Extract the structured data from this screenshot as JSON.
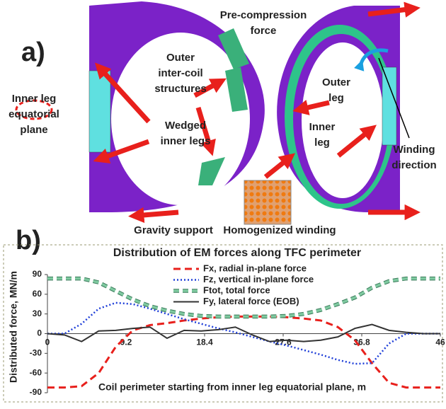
{
  "panel_a": {
    "label": "a)",
    "annotations": [
      {
        "lines": [
          "Pre-compression",
          "force"
        ]
      },
      {
        "lines": [
          "Outer",
          "inter-coil",
          "structures"
        ]
      },
      {
        "lines": [
          "Inner leg",
          "equatorial",
          "plane"
        ]
      },
      {
        "lines": [
          "Wedged",
          "inner legs"
        ]
      },
      {
        "lines": [
          "Outer",
          "leg"
        ]
      },
      {
        "lines": [
          "Inner",
          "leg"
        ]
      },
      {
        "lines": [
          "Winding",
          "direction"
        ]
      },
      {
        "lines": [
          "Gravity support"
        ]
      },
      {
        "lines": [
          "Homogenized winding"
        ]
      }
    ]
  },
  "panel_b_label": "b)",
  "chart_data": {
    "type": "line",
    "title": "Distribution of  EM forces along TFC perimeter",
    "x_label": "Coil perimeter starting from inner leg equatorial plane, m",
    "y_label": "Distributed force, MN/m",
    "x": [
      0,
      2,
      4,
      6,
      8,
      10,
      12,
      14,
      16,
      18,
      20,
      22,
      24,
      26,
      28,
      30,
      32,
      34,
      36,
      38,
      40,
      42,
      44,
      46
    ],
    "series": [
      {
        "name": "Fx, radial in-plane force",
        "color": "#e8201c",
        "values": [
          -82,
          -82,
          -80,
          -60,
          -20,
          5,
          13,
          16,
          20,
          23,
          25,
          26,
          26,
          26,
          25,
          23,
          20,
          10,
          -10,
          -45,
          -75,
          -82,
          -82,
          -82
        ]
      },
      {
        "name": "Fz, vertical in-plane force",
        "color": "#1f3fd8",
        "values": [
          0,
          0,
          15,
          38,
          47,
          45,
          38,
          30,
          22,
          15,
          8,
          2,
          -5,
          -12,
          -18,
          -25,
          -32,
          -40,
          -46,
          -45,
          -15,
          0,
          0,
          0
        ]
      },
      {
        "name": "Ftot, total force",
        "color": "#7fc9a0",
        "values": [
          84,
          84,
          84,
          78,
          65,
          52,
          42,
          35,
          30,
          27,
          26,
          26,
          26,
          26,
          27,
          30,
          36,
          45,
          55,
          70,
          80,
          84,
          84,
          84
        ]
      },
      {
        "name": "Fy, lateral force (EOB)",
        "color": "#333333",
        "values": [
          0,
          -2,
          -12,
          4,
          5,
          8,
          10,
          -7,
          5,
          4,
          6,
          10,
          -2,
          -12,
          -10,
          -12,
          -10,
          -5,
          8,
          14,
          5,
          2,
          0,
          0
        ]
      }
    ],
    "xlim": [
      0,
      46
    ],
    "xticks": [
      0,
      9.2,
      18.4,
      27.6,
      36.8,
      46
    ],
    "ylim": [
      -90,
      90
    ],
    "yticks": [
      -90,
      -60,
      -30,
      0,
      30,
      60,
      90
    ],
    "legend": "top"
  }
}
